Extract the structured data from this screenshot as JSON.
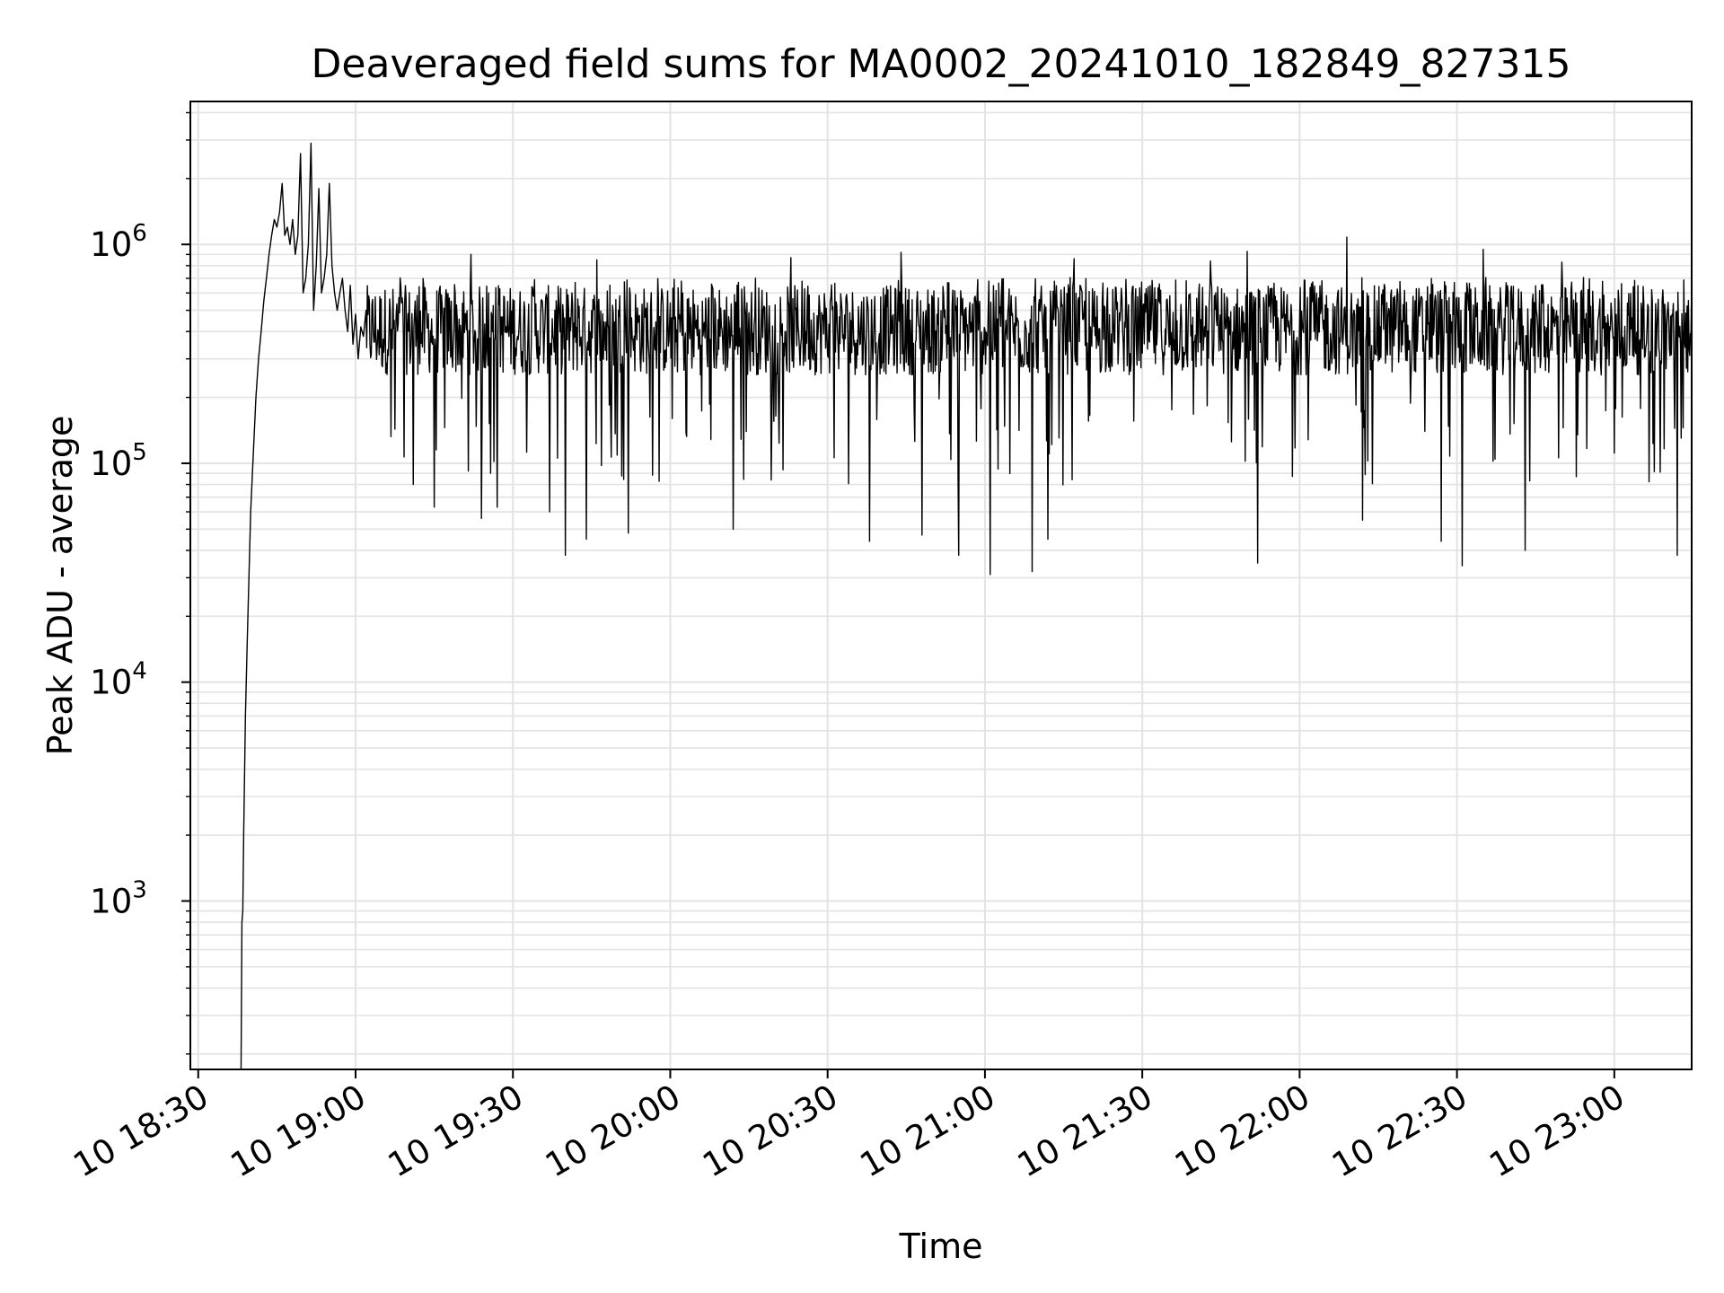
{
  "chart_data": {
    "type": "line",
    "title": "Deaveraged field sums for MA0002_20241010_182849_827315",
    "xlabel": "Time",
    "ylabel": "Peak ADU - average",
    "y_scale": "log",
    "ylim": [
      170,
      4500000
    ],
    "xlim": [
      "2024-10-10 18:28:30",
      "2024-10-10 23:14:45"
    ],
    "grid": true,
    "line_color": "#000000",
    "grid_color": "#e3e3e3",
    "x_ticks": [
      {
        "time": "2024-10-10 18:30",
        "label": "10 18:30"
      },
      {
        "time": "2024-10-10 19:00",
        "label": "10 19:00"
      },
      {
        "time": "2024-10-10 19:30",
        "label": "10 19:30"
      },
      {
        "time": "2024-10-10 20:00",
        "label": "10 20:00"
      },
      {
        "time": "2024-10-10 20:30",
        "label": "10 20:30"
      },
      {
        "time": "2024-10-10 21:00",
        "label": "10 21:00"
      },
      {
        "time": "2024-10-10 21:30",
        "label": "10 21:30"
      },
      {
        "time": "2024-10-10 22:00",
        "label": "10 22:00"
      },
      {
        "time": "2024-10-10 22:30",
        "label": "10 22:30"
      },
      {
        "time": "2024-10-10 23:00",
        "label": "10 23:00"
      }
    ],
    "y_ticks": [
      {
        "value": 1000,
        "base": "10",
        "exp": "3"
      },
      {
        "value": 10000,
        "base": "10",
        "exp": "4"
      },
      {
        "value": 100000,
        "base": "10",
        "exp": "5"
      },
      {
        "value": 1000000,
        "base": "10",
        "exp": "6"
      }
    ],
    "series": [
      {
        "x": [
          "18:38:10",
          "18:38:20",
          "18:38:30",
          "18:38:40",
          "18:39:00",
          "18:39:20",
          "18:39:40",
          "18:40:00",
          "18:40:30",
          "18:41:00",
          "18:41:30",
          "18:42:00",
          "18:42:30",
          "18:43:00",
          "18:43:30",
          "18:44:00",
          "18:44:30",
          "18:45:00",
          "18:45:30",
          "18:46:00",
          "18:46:30",
          "18:47:00",
          "18:47:30",
          "18:48:00",
          "18:48:30",
          "18:49:00",
          "18:49:30",
          "18:50:00",
          "18:50:30",
          "18:51:00",
          "18:51:30",
          "18:52:00",
          "18:52:30",
          "18:53:00",
          "18:53:30",
          "18:54:00",
          "18:54:30",
          "18:55:00",
          "18:55:30",
          "18:56:00",
          "18:56:30",
          "18:57:00",
          "18:57:30",
          "18:58:00",
          "18:58:30",
          "18:59:00",
          "18:59:30",
          "19:00:00",
          "19:00:30",
          "19:01:00",
          "19:01:30",
          "19:02:00"
        ],
        "y": [
          170,
          800,
          900,
          2000,
          7000,
          15000,
          30000,
          60000,
          110000,
          200000,
          300000,
          400000,
          550000,
          700000,
          900000,
          1100000,
          1300000,
          1200000,
          1400000,
          1900000,
          1100000,
          1200000,
          1000000,
          1300000,
          900000,
          1100000,
          2600000,
          600000,
          700000,
          1000000,
          2900000,
          500000,
          800000,
          1800000,
          600000,
          700000,
          900000,
          1900000,
          800000,
          600000,
          500000,
          600000,
          700000,
          500000,
          400000,
          650000,
          350000,
          480000,
          300000,
          420000,
          380000,
          500000
        ]
      }
    ],
    "noisy_segment": {
      "start": "19:02:00",
      "end": "23:14:45",
      "typical_range": [
        200000,
        650000
      ],
      "low_dips": [
        {
          "time": "19:11:00",
          "value": 80000
        },
        {
          "time": "19:15:00",
          "value": 63000
        },
        {
          "time": "19:24:00",
          "value": 56000
        },
        {
          "time": "19:27:00",
          "value": 63000
        },
        {
          "time": "19:37:00",
          "value": 60000
        },
        {
          "time": "19:40:00",
          "value": 38000
        },
        {
          "time": "19:44:00",
          "value": 45000
        },
        {
          "time": "19:52:00",
          "value": 48000
        },
        {
          "time": "20:12:00",
          "value": 50000
        },
        {
          "time": "20:38:00",
          "value": 44000
        },
        {
          "time": "20:48:00",
          "value": 47000
        },
        {
          "time": "20:55:00",
          "value": 38000
        },
        {
          "time": "21:01:00",
          "value": 31000
        },
        {
          "time": "21:09:00",
          "value": 32000
        },
        {
          "time": "21:12:00",
          "value": 45000
        },
        {
          "time": "21:50:00",
          "value": 30000
        },
        {
          "time": "21:52:00",
          "value": 35000
        },
        {
          "time": "22:12:00",
          "value": 55000
        },
        {
          "time": "22:27:00",
          "value": 44000
        },
        {
          "time": "22:31:00",
          "value": 34000
        },
        {
          "time": "22:43:00",
          "value": 40000
        },
        {
          "time": "23:12:00",
          "value": 38000
        }
      ],
      "high_spikes": [
        {
          "time": "19:22:00",
          "value": 900000
        },
        {
          "time": "19:46:00",
          "value": 850000
        },
        {
          "time": "20:23:00",
          "value": 870000
        },
        {
          "time": "20:44:00",
          "value": 920000
        },
        {
          "time": "21:17:00",
          "value": 860000
        },
        {
          "time": "21:43:00",
          "value": 840000
        },
        {
          "time": "21:50:00",
          "value": 930000
        },
        {
          "time": "22:09:00",
          "value": 1080000
        },
        {
          "time": "22:35:00",
          "value": 950000
        },
        {
          "time": "22:50:00",
          "value": 830000
        }
      ]
    }
  }
}
